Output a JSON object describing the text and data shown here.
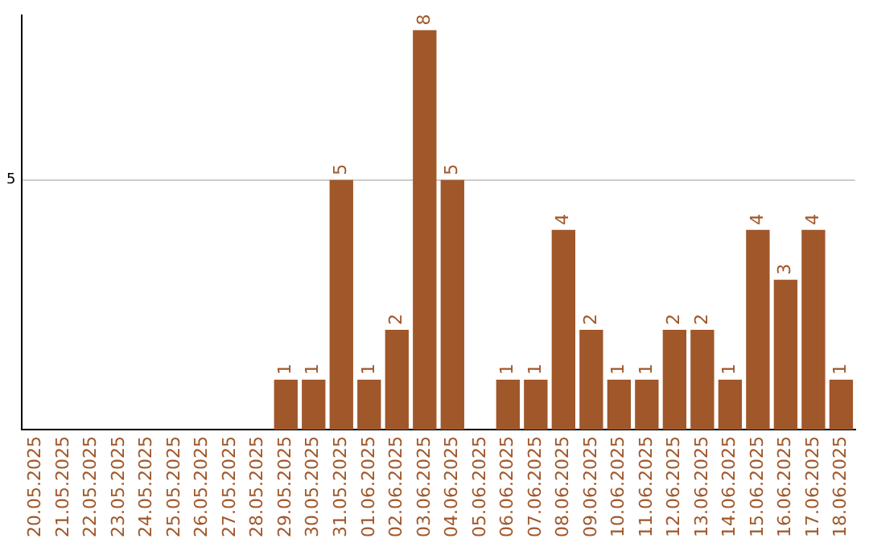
{
  "chart_data": {
    "type": "bar",
    "categories": [
      "20.05.2025",
      "21.05.2025",
      "22.05.2025",
      "23.05.2025",
      "24.05.2025",
      "25.05.2025",
      "26.05.2025",
      "27.05.2025",
      "28.05.2025",
      "29.05.2025",
      "30.05.2025",
      "31.05.2025",
      "01.06.2025",
      "02.06.2025",
      "03.06.2025",
      "04.06.2025",
      "05.06.2025",
      "06.06.2025",
      "07.06.2025",
      "08.06.2025",
      "09.06.2025",
      "10.06.2025",
      "11.06.2025",
      "12.06.2025",
      "13.06.2025",
      "14.06.2025",
      "15.06.2025",
      "16.06.2025",
      "17.06.2025",
      "18.06.2025"
    ],
    "values": [
      0,
      0,
      0,
      0,
      0,
      0,
      0,
      0,
      0,
      1,
      1,
      5,
      1,
      2,
      8,
      5,
      0,
      1,
      1,
      4,
      2,
      1,
      1,
      2,
      2,
      1,
      4,
      3,
      4,
      1
    ],
    "value_labels": [
      null,
      null,
      null,
      null,
      null,
      null,
      null,
      null,
      null,
      "1",
      "1",
      "5",
      "1",
      "2",
      "8",
      "5",
      null,
      "1",
      "1",
      "4",
      "2",
      "1",
      "1",
      "2",
      "2",
      "1",
      "4",
      "3",
      "4",
      "1"
    ],
    "color": "#a0572a",
    "ylim": [
      0,
      8.3
    ],
    "yticks": [
      5
    ],
    "grid": "y"
  }
}
